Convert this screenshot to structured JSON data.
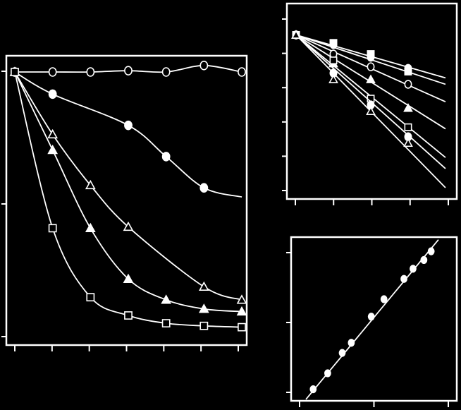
{
  "colors": {
    "background": "#000000",
    "foreground": "#ffffff"
  },
  "chart_data": [
    {
      "type": "line",
      "xlim": [
        0,
        6
      ],
      "ylim": [
        0,
        1
      ],
      "grid": false,
      "series": [
        {
          "marker": "circle-open",
          "x": [
            0,
            1,
            2,
            3,
            4,
            5,
            6
          ],
          "y": [
            1.0,
            1.0,
            1.0,
            1.005,
            1.0,
            1.025,
            1.0
          ]
        },
        {
          "marker": "circle-filled",
          "x": [
            0,
            1,
            3,
            4,
            5
          ],
          "y": [
            1.0,
            0.915,
            0.795,
            0.675,
            0.555
          ],
          "fit_end": [
            6,
            0.52
          ]
        },
        {
          "marker": "triangle-open",
          "x": [
            0,
            1,
            2,
            3,
            5,
            6
          ],
          "y": [
            1.0,
            0.76,
            0.565,
            0.405,
            0.175,
            0.125
          ]
        },
        {
          "marker": "triangle-filled",
          "x": [
            0,
            1,
            2,
            3,
            4,
            5,
            6
          ],
          "y": [
            1.0,
            0.7,
            0.4,
            0.205,
            0.125,
            0.09,
            0.08
          ]
        },
        {
          "marker": "square-open",
          "x": [
            0,
            1,
            2,
            3,
            4,
            5,
            6
          ],
          "y": [
            1.0,
            0.4,
            0.135,
            0.065,
            0.035,
            0.025,
            0.02
          ]
        }
      ]
    },
    {
      "type": "line",
      "xlim": [
        0,
        4
      ],
      "ylim": [
        -5,
        0.3
      ],
      "grid": false,
      "series": [
        {
          "marker": "circle-filled",
          "x": [
            0,
            1,
            2,
            3
          ],
          "y": [
            0,
            -0.3,
            -0.7,
            -1.05
          ],
          "fit_end": [
            4,
            -1.35
          ]
        },
        {
          "marker": "square-filled",
          "x": [
            0,
            1,
            2,
            3
          ],
          "y": [
            0,
            -0.25,
            -0.6,
            -1.15
          ],
          "fit_end": [
            4,
            -1.55
          ]
        },
        {
          "marker": "circle-open",
          "x": [
            0,
            1,
            2,
            3
          ],
          "y": [
            0,
            -0.6,
            -1.0,
            -1.55
          ],
          "fit_end": [
            4,
            -2.1
          ]
        },
        {
          "marker": "triangle-filled",
          "x": [
            0,
            1,
            2,
            3
          ],
          "y": [
            0,
            -0.9,
            -1.4,
            -2.3
          ],
          "fit_end": [
            4,
            -2.95
          ]
        },
        {
          "marker": "square-open",
          "x": [
            0,
            1,
            2,
            3
          ],
          "y": [
            0,
            -0.8,
            -2.0,
            -2.9
          ],
          "fit_end": [
            4,
            -3.85
          ]
        },
        {
          "marker": "circle-filled",
          "x": [
            0,
            1,
            2,
            3
          ],
          "y": [
            0,
            -1.2,
            -2.2,
            -3.2
          ],
          "fit_end": [
            4,
            -4.2
          ]
        },
        {
          "marker": "triangle-open",
          "x": [
            0,
            1,
            2,
            3
          ],
          "y": [
            0,
            -1.4,
            -2.4,
            -3.4
          ],
          "fit_end": [
            4,
            -4.8
          ]
        }
      ]
    },
    {
      "type": "scatter",
      "xlim": [
        0,
        8
      ],
      "ylim": [
        0,
        10.5
      ],
      "grid": false,
      "series": [
        {
          "marker": "circle-filled",
          "x": [
            0.4,
            1.2,
            2.0,
            2.5,
            3.6,
            4.3,
            5.4,
            5.9,
            6.5,
            6.9
          ],
          "y": [
            0.8,
            1.9,
            3.3,
            4.0,
            5.8,
            7.0,
            8.4,
            9.1,
            9.7,
            10.3
          ],
          "fit": {
            "x": [
              0,
              7.3
            ],
            "y": [
              0.1,
              11.1
            ]
          }
        }
      ]
    }
  ]
}
